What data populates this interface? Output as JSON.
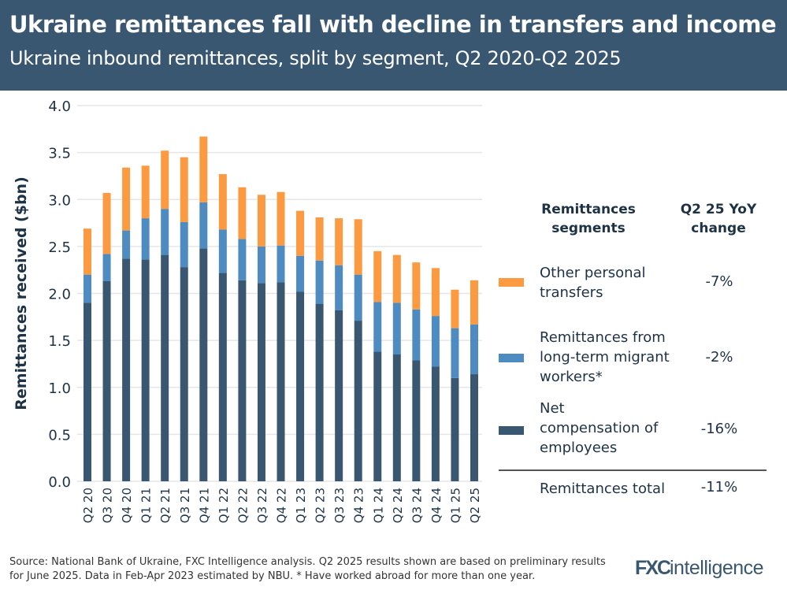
{
  "header": {
    "title": "Ukraine remittances fall with decline in transfers and income",
    "subtitle": "Ukraine inbound remittances, split by segment, Q2 2020-Q2 2025"
  },
  "chart_data": {
    "type": "bar",
    "stacked": true,
    "title": "Ukraine remittances fall with decline in transfers and income",
    "subtitle": "Ukraine inbound remittances, split by segment, Q2 2020-Q2 2025",
    "ylabel": "Remittances received ($bn)",
    "xlabel": "",
    "ylim": [
      0,
      4.0
    ],
    "yticks": [
      "0.0",
      "0.5",
      "1.0",
      "1.5",
      "2.0",
      "2.5",
      "3.0",
      "3.5",
      "4.0"
    ],
    "grid": true,
    "legend_placement": "right",
    "categories": [
      "Q2 20",
      "Q3 20",
      "Q4 20",
      "Q1 21",
      "Q2 21",
      "Q3 21",
      "Q4 21",
      "Q1 22",
      "Q2 22",
      "Q3 22",
      "Q4 22",
      "Q1 23",
      "Q2 23",
      "Q3 23",
      "Q4 23",
      "Q1 24",
      "Q2 24",
      "Q3 24",
      "Q4 24",
      "Q1 25",
      "Q2 25"
    ],
    "series": [
      {
        "name": "Net compensation of employees",
        "color": "#3a5772",
        "values": [
          1.9,
          2.13,
          2.37,
          2.36,
          2.41,
          2.28,
          2.48,
          2.22,
          2.14,
          2.11,
          2.12,
          2.02,
          1.89,
          1.82,
          1.71,
          1.38,
          1.35,
          1.29,
          1.22,
          1.1,
          1.14
        ]
      },
      {
        "name": "Remittances from long-term migrant workers*",
        "color": "#4d8bc0",
        "values": [
          0.3,
          0.29,
          0.3,
          0.44,
          0.49,
          0.48,
          0.49,
          0.46,
          0.44,
          0.39,
          0.39,
          0.38,
          0.46,
          0.48,
          0.49,
          0.53,
          0.55,
          0.54,
          0.54,
          0.53,
          0.53
        ]
      },
      {
        "name": "Other personal transfers",
        "color": "#fb9a40",
        "values": [
          0.49,
          0.65,
          0.67,
          0.56,
          0.62,
          0.69,
          0.7,
          0.59,
          0.55,
          0.55,
          0.57,
          0.48,
          0.46,
          0.5,
          0.59,
          0.54,
          0.51,
          0.5,
          0.51,
          0.41,
          0.47
        ]
      }
    ]
  },
  "legend": {
    "col1_header_line1": "Remittances",
    "col1_header_line2": "segments",
    "col2_header_line1": "Q2 25 YoY",
    "col2_header_line2": "change",
    "rows": [
      {
        "label": "Other personal transfers",
        "value": "-7%",
        "color": "#fb9a40"
      },
      {
        "label": "Remittances from long-term migrant workers*",
        "value": "-2%",
        "color": "#4d8bc0"
      },
      {
        "label": "Net compensation of employees",
        "value": "-16%",
        "color": "#3a5772"
      }
    ],
    "total": {
      "label": "Remittances total",
      "value": "-11%"
    }
  },
  "footer": {
    "source": "Source: National Bank of Ukraine, FXC Intelligence analysis. Q2 2025 results shown are based on preliminary results for June 2025. Data in Feb-Apr 2023 estimated by NBU. * Have worked abroad for more than one year.",
    "logo": "FXCintelligence"
  }
}
